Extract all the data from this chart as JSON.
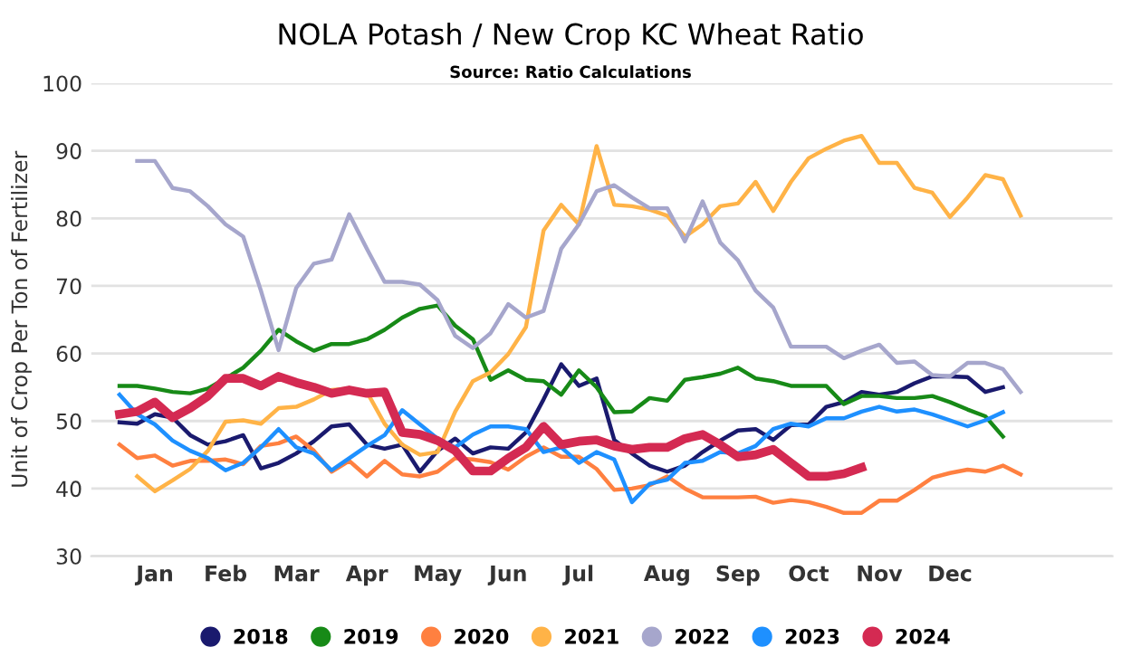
{
  "chart_data": {
    "type": "line",
    "title": "NOLA Potash / New Crop KC Wheat Ratio",
    "subtitle": "Source: Ratio Calculations",
    "ylabel": "Unit of Crop Per Ton of Fertilizer",
    "categories": [
      null,
      null,
      "Jan",
      null,
      null,
      null,
      "Feb",
      null,
      null,
      null,
      "Mar",
      null,
      null,
      null,
      "Apr",
      null,
      null,
      null,
      "May",
      null,
      null,
      null,
      "Jun",
      null,
      null,
      null,
      "Jul",
      null,
      null,
      null,
      null,
      "Aug",
      null,
      null,
      null,
      "Sep",
      null,
      null,
      null,
      "Oct",
      null,
      null,
      null,
      "Nov",
      null,
      null,
      null,
      "Dec",
      null,
      null,
      null,
      null
    ],
    "ylim": [
      30,
      100
    ],
    "yticks": [
      30,
      40,
      50,
      60,
      70,
      80,
      90,
      100
    ],
    "grid": "y",
    "legend": "bottom",
    "marker": "none",
    "line_style": "solid",
    "series": [
      {
        "name": "2018",
        "color": "#1a1a6e",
        "values": [
          49.8,
          49.6,
          51,
          50.5,
          47.9,
          46.5,
          47,
          47.9,
          43,
          43.8,
          45.2,
          47,
          49.2,
          49.5,
          46.5,
          45.9,
          46.5,
          42.5,
          45.6,
          47.4,
          45.2,
          46.1,
          45.9,
          48.3,
          53.2,
          58.4,
          55.2,
          56.3,
          47.2,
          45.2,
          43.4,
          42.5,
          43.4,
          45.4,
          47.1,
          48.6,
          48.8,
          47.2,
          49.4,
          49.5,
          52.1,
          52.8,
          54.3,
          53.9,
          54.3,
          55.6,
          56.6,
          56.6,
          56.5,
          54.3,
          55,
          null
        ]
      },
      {
        "name": "2019",
        "color": "#178a17",
        "values": [
          55.2,
          55.2,
          54.8,
          54.3,
          54.1,
          54.8,
          56.3,
          57.9,
          60.4,
          63.5,
          61.8,
          60.4,
          61.4,
          61.4,
          62.1,
          63.5,
          65.3,
          66.6,
          67.1,
          64.1,
          62.1,
          56.1,
          57.5,
          56.1,
          55.9,
          53.9,
          57.5,
          55,
          51.3,
          51.4,
          53.4,
          53,
          56.1,
          56.5,
          57,
          57.9,
          56.3,
          55.9,
          55.2,
          55.2,
          55.2,
          52.5,
          53.7,
          53.7,
          53.4,
          53.4,
          53.7,
          52.8,
          51.7,
          50.7,
          47.7,
          null
        ]
      },
      {
        "name": "2020",
        "color": "#ff8040",
        "values": [
          46.5,
          44.5,
          44.9,
          43.4,
          44.1,
          44.1,
          44.3,
          43.6,
          46.3,
          46.7,
          47.7,
          45.6,
          42.5,
          44.1,
          41.8,
          44.1,
          42.1,
          41.8,
          42.5,
          44.5,
          44.3,
          43.9,
          42.8,
          44.7,
          46.1,
          44.7,
          44.7,
          42.9,
          39.8,
          40,
          40.5,
          41.8,
          40,
          38.7,
          38.7,
          38.7,
          38.8,
          37.9,
          38.3,
          38,
          37.3,
          36.4,
          36.4,
          38.2,
          38.2,
          39.8,
          41.6,
          42.3,
          42.8,
          42.5,
          43.4,
          42.1
        ]
      },
      {
        "name": "2021",
        "color": "#ffb347",
        "values": [
          null,
          41.8,
          39.6,
          41.2,
          42.9,
          45.6,
          49.9,
          50.1,
          49.6,
          51.9,
          52.1,
          53.2,
          54.6,
          54.8,
          54.3,
          49.6,
          46.5,
          45,
          45.4,
          51.4,
          55.9,
          57.2,
          59.9,
          63.9,
          78.2,
          82,
          79.1,
          90.7,
          82,
          81.8,
          81.3,
          80.4,
          77.3,
          79.1,
          81.8,
          82.2,
          85.4,
          81.1,
          85.4,
          88.9,
          90.3,
          91.5,
          92.2,
          88.2,
          88.2,
          84.5,
          83.8,
          80.2,
          83.1,
          86.4,
          85.8,
          80.4
        ]
      },
      {
        "name": "2022",
        "color": "#a6a6cc",
        "values": [
          null,
          88.5,
          88.5,
          84.5,
          84,
          81.8,
          79.1,
          77.3,
          69.3,
          60.5,
          69.7,
          73.3,
          73.9,
          80.6,
          75.5,
          70.6,
          70.6,
          70.2,
          67.9,
          62.6,
          60.8,
          63,
          67.3,
          65.3,
          66.3,
          75.5,
          79.1,
          84,
          84.9,
          83.1,
          81.5,
          81.5,
          76.6,
          82.5,
          76.4,
          73.8,
          69.3,
          66.8,
          61,
          61,
          61,
          59.3,
          60.4,
          61.3,
          58.6,
          58.8,
          56.8,
          56.6,
          58.6,
          58.6,
          57.7,
          54.3
        ]
      },
      {
        "name": "2023",
        "color": "#1e90ff",
        "values": [
          53.9,
          51,
          49.5,
          47.1,
          45.6,
          44.5,
          42.7,
          43.8,
          46.1,
          48.8,
          46.1,
          45.2,
          42.7,
          44.5,
          46.3,
          47.9,
          51.6,
          49.5,
          47.4,
          46.1,
          48,
          49.2,
          49.2,
          48.8,
          45.4,
          46.1,
          43.8,
          45.4,
          44.3,
          38,
          40.7,
          41.3,
          43.8,
          44.1,
          45.4,
          45.2,
          46.3,
          48.8,
          49.6,
          49.2,
          50.4,
          50.4,
          51.4,
          52.1,
          51.4,
          51.7,
          51,
          50.1,
          49.2,
          50.1,
          51.3,
          null
        ]
      },
      {
        "name": "2024",
        "color": "#d42a52",
        "values": [
          51,
          51.4,
          52.8,
          50.5,
          51.9,
          53.7,
          56.3,
          56.3,
          55.2,
          56.6,
          55.7,
          55,
          54.1,
          54.6,
          54.1,
          54.3,
          48.3,
          48,
          47.1,
          45.6,
          42.6,
          42.6,
          44.5,
          46.1,
          49.2,
          46.5,
          47,
          47.2,
          46.3,
          45.8,
          46.1,
          46.1,
          47.4,
          48,
          46.5,
          44.7,
          45,
          45.8,
          43.8,
          41.8,
          41.8,
          42.2,
          43.1,
          null,
          null,
          null,
          null,
          null,
          null,
          null,
          null,
          null
        ]
      }
    ]
  }
}
